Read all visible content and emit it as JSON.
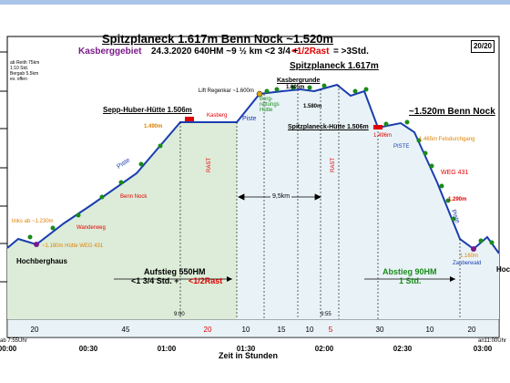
{
  "header": {
    "title": "Spitzplaneck 1.617m  Benn Nock ~1.520m",
    "region": "Kasberggebiet",
    "details": "24.3.2020   640HM   ~9 ½ km   <2 3/4 + ",
    "rest": "<1/2Rast",
    "total": " = >3Std.",
    "page_badge": "20/20"
  },
  "info_box": "ab Reith 75km\n1:10 Std.\nBergab 5.5km\nev. offen",
  "peaks": {
    "spitzplaneck": "Spitzplaneck 1.617m",
    "benn_nock": "~1.520m Benn Nock",
    "sepp_huber_left": "Sepp-Huber-Hütte 1.506m",
    "sepp_huber_right": "Spitzplaneck-Hütte 1.506m"
  },
  "labels": {
    "kasberg_flag": "Kasberg",
    "lift_regenkar": "Lift Regenkar ~1.600m",
    "bergrettung": "Berg-\nrettungs\nHütte",
    "kasbergrunde": "Kasbergrunde",
    "kasbergrunde_alt": "1.605m",
    "alt_1580": "1.580m",
    "alt_1490": "1.490m",
    "alt_1496": "1.496m",
    "alt_1465": "1.465m Felsdurchgang",
    "alt_1290": "1.290m",
    "alt_1230": "links ab ~1.230m",
    "alt_1180": "~1.180m Hütte WEG 431",
    "alt_1160": "1.160m",
    "zauberwald": "Zauberwald",
    "weg431": "WEG 431",
    "wanderweg": "Wanderweg",
    "benn_nock_small": "Benn Nock",
    "piste1": "Piste",
    "piste2": "Piste",
    "piste3": "PISTE",
    "piste4": "Piste",
    "rast1": "RAST",
    "rast2": "RAST",
    "distance": "9,5km",
    "hochberghaus_left": "Hochberghaus",
    "hochberghaus_right": "Hoc",
    "time_900": "9:00",
    "time_955": "9:55",
    "start": "ab 7:55Uhr",
    "end": "an11:00Uhr"
  },
  "ascent": {
    "line1": "Aufstieg 550HM",
    "line2": "<1 3/4 Std. + ",
    "rest": "<1/2Rast"
  },
  "descent": {
    "line1": "Abstieg 90HM",
    "line2": "1 Std."
  },
  "segments": [
    "20",
    "45",
    "20",
    "10",
    "15",
    "10",
    "5",
    "30",
    "10",
    "20"
  ],
  "segment_colors": [
    "#000000",
    "#000000",
    "#e00000",
    "#000000",
    "#000000",
    "#000000",
    "#e00000",
    "#000000",
    "#000000",
    "#000000"
  ],
  "x_axis": {
    "title": "Zeit in Stunden",
    "ticks": [
      "00:00",
      "00:30",
      "01:00",
      "01:30",
      "02:00",
      "02:30",
      "03:00"
    ]
  },
  "colors": {
    "profile": "#1a3db0",
    "fill": "#e9f3f7",
    "ascent_fill": "#dcecd8",
    "accent_red": "#e00000",
    "accent_green": "#1a8a1a",
    "accent_purple": "#7a1a8a",
    "accent_orange": "#e08000"
  },
  "chart_data": {
    "type": "area",
    "xlabel": "Zeit in Stunden",
    "x_ticks": [
      "00:00",
      "00:30",
      "01:00",
      "01:30",
      "02:00",
      "02:30",
      "03:00"
    ],
    "series": [
      {
        "values_minutes": [
          0,
          4,
          10,
          30,
          50,
          55,
          85,
          95,
          105,
          125,
          130,
          135,
          140,
          150,
          155,
          165,
          175,
          185,
          190,
          200,
          210,
          215,
          220,
          225,
          235
        ],
        "altitude_m": [
          1180,
          1200,
          1180,
          1230,
          1290,
          1300,
          1490,
          1506,
          1506,
          1600,
          1605,
          1600,
          1605,
          1617,
          1605,
          1580,
          1506,
          1520,
          1496,
          1465,
          1290,
          1180,
          1160,
          1180,
          1150
        ]
      }
    ]
  }
}
